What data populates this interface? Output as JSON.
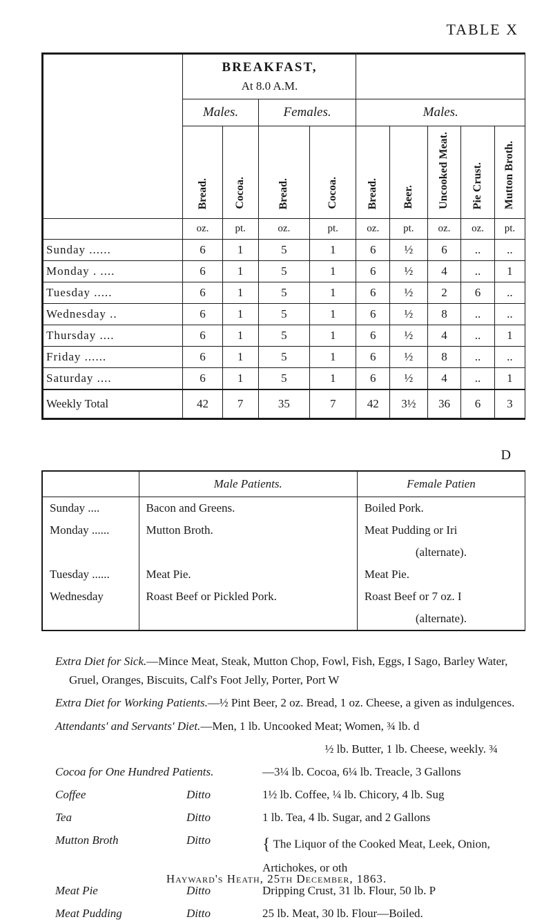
{
  "page_title": "TABLE X",
  "breakfast_section": {
    "title": "BREAKFAST,",
    "time": "At 8.0 A.M.",
    "gender_headers": [
      "Males.",
      "Females.",
      "Males."
    ],
    "columns": [
      "Bread.",
      "Cocoa.",
      "Bread.",
      "Cocoa.",
      "Bread.",
      "Beer.",
      "Uncooked Meat.",
      "Pie Crust.",
      "Mutton Broth."
    ],
    "units": [
      "oz.",
      "pt.",
      "oz.",
      "pt.",
      "oz.",
      "pt.",
      "oz.",
      "oz.",
      "pt."
    ],
    "rows": [
      {
        "day": "Sunday ......",
        "vals": [
          "6",
          "1",
          "5",
          "1",
          "6",
          "½",
          "6",
          "..",
          ".."
        ]
      },
      {
        "day": "Monday . ....",
        "vals": [
          "6",
          "1",
          "5",
          "1",
          "6",
          "½",
          "4",
          "..",
          "1"
        ]
      },
      {
        "day": "Tuesday .....",
        "vals": [
          "6",
          "1",
          "5",
          "1",
          "6",
          "½",
          "2",
          "6",
          ".."
        ]
      },
      {
        "day": "Wednesday ..",
        "vals": [
          "6",
          "1",
          "5",
          "1",
          "6",
          "½",
          "8",
          "..",
          ".."
        ]
      },
      {
        "day": "Thursday ....",
        "vals": [
          "6",
          "1",
          "5",
          "1",
          "6",
          "½",
          "4",
          "..",
          "1"
        ]
      },
      {
        "day": "Friday ......",
        "vals": [
          "6",
          "1",
          "5",
          "1",
          "6",
          "½",
          "8",
          "..",
          ".."
        ]
      },
      {
        "day": "Saturday ....",
        "vals": [
          "6",
          "1",
          "5",
          "1",
          "6",
          "½",
          "4",
          "..",
          "1"
        ]
      }
    ],
    "total": {
      "label": "Weekly Total",
      "vals": [
        "42",
        "7",
        "35",
        "7",
        "42",
        "3½",
        "36",
        "6",
        "3"
      ]
    }
  },
  "dc_label": "D",
  "patients_section": {
    "headers": [
      "",
      "Male Patients.",
      "Female Patien"
    ],
    "rows": [
      {
        "day": "Sunday ....",
        "male": "Bacon and Greens.",
        "female": "Boiled Pork."
      },
      {
        "day": "Monday ......",
        "male": "Mutton Broth.",
        "female": "Meat Pudding or Iri"
      },
      {
        "day": "",
        "male": "",
        "female": "(alternate)."
      },
      {
        "day": "Tuesday ......",
        "male": "Meat Pie.",
        "female": "Meat Pie."
      },
      {
        "day": "Wednesday",
        "male": "Roast Beef or Pickled Pork.",
        "female": "Roast Beef or 7 oz. I"
      },
      {
        "day": "",
        "male": "",
        "female": "(alternate)."
      }
    ]
  },
  "notes": {
    "extra_sick": {
      "label": "Extra Diet for Sick.",
      "text": "—Mince Meat, Steak, Mutton Chop, Fowl, Fish, Eggs, I Sago, Barley Water, Gruel, Oranges, Biscuits, Calf's Foot Jelly, Porter, Port W"
    },
    "extra_working": {
      "label": "Extra Diet for Working Patients.",
      "text": "—½ Pint Beer, 2 oz. Bread, 1 oz. Cheese, a given as indulgences."
    },
    "attendants": {
      "label": "Attendants' and Servants' Diet.",
      "text": "—Men, 1 lb. Uncooked Meat; Women, ¾ lb. d",
      "text2": "½ lb. Butter, 1 lb. Cheese, weekly.  ¾"
    },
    "items": [
      {
        "name": "Cocoa for One Hundred Patients.",
        "extra": "",
        "desc": "—3¼ lb. Cocoa, 6¼ lb. Treacle, 3 Gallons"
      },
      {
        "name": "Coffee",
        "extra": "Ditto",
        "desc": "1½ lb. Coffee, ¼ lb. Chicory, 4 lb. Sug"
      },
      {
        "name": "Tea",
        "extra": "Ditto",
        "desc": "1 lb. Tea, 4 lb. Sugar, and 2 Gallons"
      },
      {
        "name": "Mutton Broth",
        "extra": "Ditto",
        "desc": "The Liquor of the Cooked Meat, Leek, Onion, Artichokes, or oth"
      },
      {
        "name": "Meat Pie",
        "extra": "Ditto",
        "desc": "Dripping Crust, 31 lb. Flour, 50 lb. P"
      },
      {
        "name": "Meat Pudding",
        "extra": "Ditto",
        "desc": "25 lb. Meat, 30 lb. Flour—Boiled."
      }
    ]
  },
  "footer": "Hayward's Heath, 25th December, 1863."
}
